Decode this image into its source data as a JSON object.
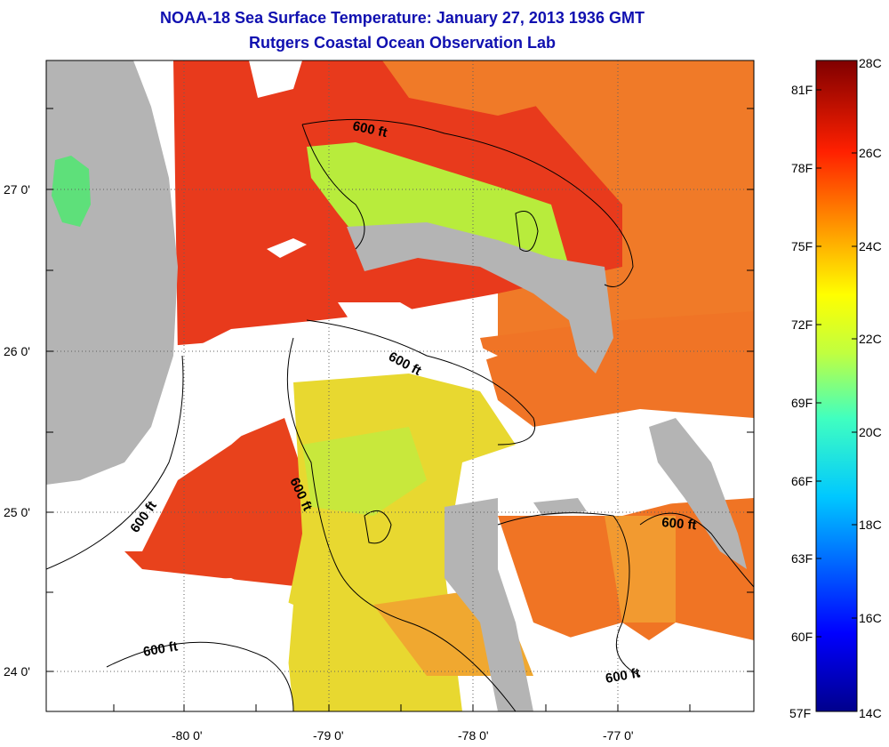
{
  "title_line1": "NOAA-18 Sea Surface Temperature:  January 27, 2013 1936 GMT",
  "title_line2": "Rutgers Coastal Ocean Observation Lab",
  "map": {
    "lon_ticks": [
      "-80 0'",
      "-79 0'",
      "-78 0'",
      "-77 0'"
    ],
    "lat_ticks": [
      "27 0'",
      "26 0'",
      "25 0'",
      "24 0'"
    ],
    "contour_labels": [
      "600 ft",
      "600 ft",
      "600 ft",
      "600 ft",
      "600 ft",
      "600 ft"
    ],
    "colors": {
      "land": "#b4b4b4",
      "cloud": "#ffffff",
      "warm": "#e83018",
      "orange": "#f08020",
      "yellow": "#e8e030",
      "green": "#b8ec3c"
    }
  },
  "colorbar": {
    "celsius": [
      "28C",
      "26C",
      "24C",
      "22C",
      "20C",
      "18C",
      "16C",
      "14C"
    ],
    "fahrenheit": [
      "81F",
      "78F",
      "75F",
      "72F",
      "69F",
      "66F",
      "63F",
      "60F",
      "57F"
    ]
  }
}
